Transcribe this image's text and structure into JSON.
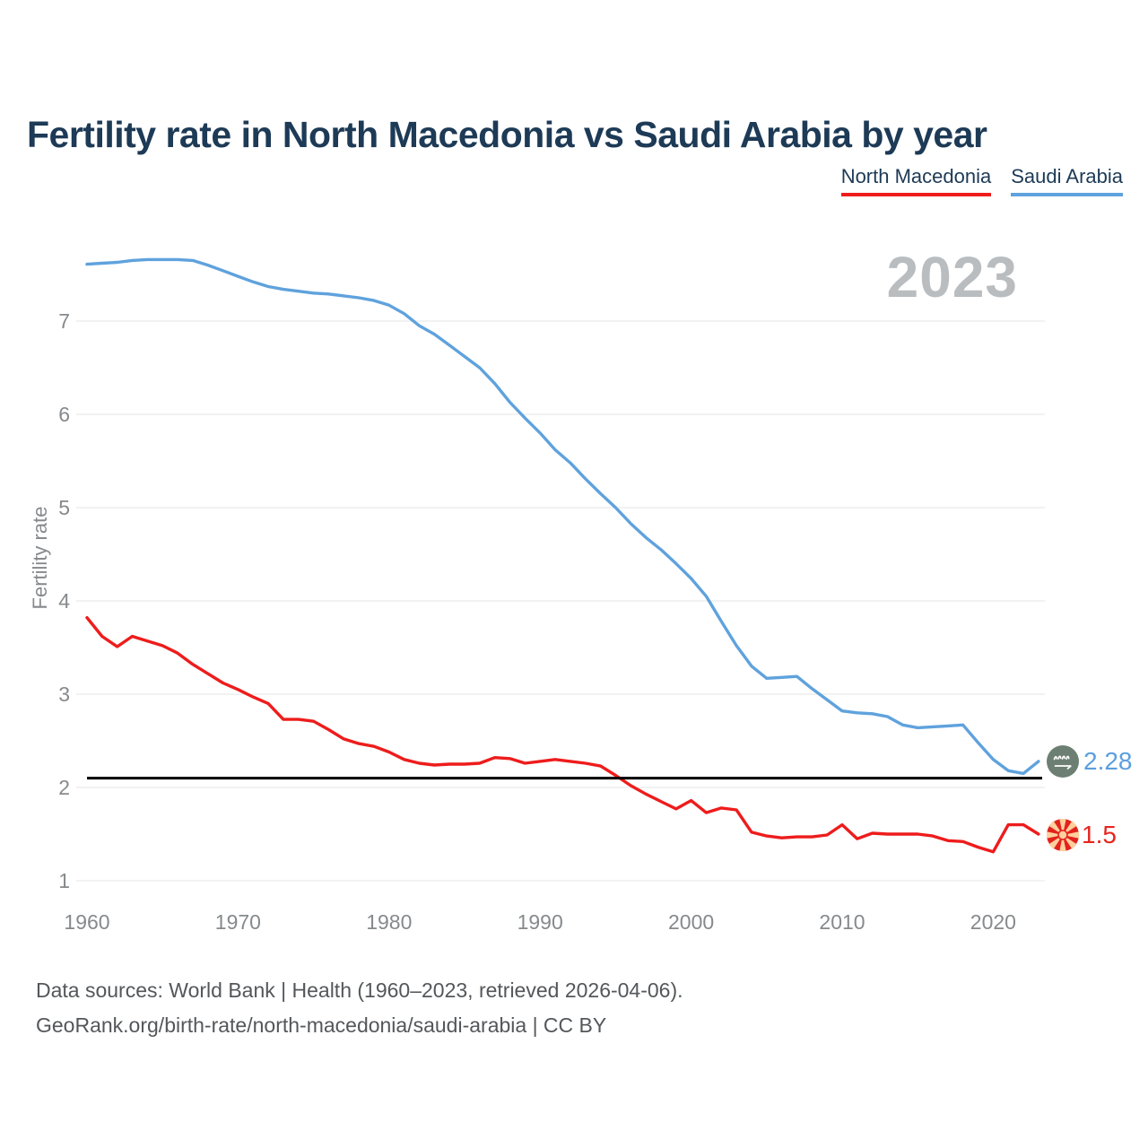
{
  "page": {
    "title": "Fertility rate in North Macedonia vs Saudi Arabia by year",
    "watermark_year": "2023"
  },
  "legend": [
    {
      "label": "North Macedonia",
      "color": "#ee1c1c"
    },
    {
      "label": "Saudi Arabia",
      "color": "#5fa2dd"
    }
  ],
  "axes": {
    "ylabel": "Fertility rate"
  },
  "footer": {
    "line1": "Data sources: World Bank | Health (1960–2023, retrieved 2026-04-06).",
    "line2": "GeoRank.org/birth-rate/north-macedonia/saudi-arabia | CC BY"
  },
  "chart_data": {
    "type": "line",
    "title": "Fertility rate in North Macedonia vs Saudi Arabia by year",
    "xlabel": "",
    "ylabel": "Fertility rate",
    "xlim": [
      1960,
      2023
    ],
    "ylim": [
      1,
      7.9
    ],
    "xticks": [
      1960,
      1970,
      1980,
      1990,
      2000,
      2010,
      2020
    ],
    "yticks": [
      1,
      2,
      3,
      4,
      5,
      6,
      7
    ],
    "grid": "horizontal",
    "legend_position": "top-right",
    "annotation_year": "2023",
    "reference_line": {
      "value": 2.1,
      "color": "#000000"
    },
    "x": [
      1960,
      1961,
      1962,
      1963,
      1964,
      1965,
      1966,
      1967,
      1968,
      1969,
      1970,
      1971,
      1972,
      1973,
      1974,
      1975,
      1976,
      1977,
      1978,
      1979,
      1980,
      1981,
      1982,
      1983,
      1984,
      1985,
      1986,
      1987,
      1988,
      1989,
      1990,
      1991,
      1992,
      1993,
      1994,
      1995,
      1996,
      1997,
      1998,
      1999,
      2000,
      2001,
      2002,
      2003,
      2004,
      2005,
      2006,
      2007,
      2008,
      2009,
      2010,
      2011,
      2012,
      2013,
      2014,
      2015,
      2016,
      2017,
      2018,
      2019,
      2020,
      2021,
      2022,
      2023
    ],
    "series": [
      {
        "name": "North Macedonia",
        "color": "#ee1c1c",
        "end_label": "1.5",
        "end_value": 1.5,
        "values": [
          3.82,
          3.62,
          3.51,
          3.62,
          3.57,
          3.52,
          3.44,
          3.32,
          3.22,
          3.12,
          3.05,
          2.97,
          2.9,
          2.73,
          2.73,
          2.71,
          2.62,
          2.52,
          2.47,
          2.44,
          2.38,
          2.3,
          2.26,
          2.24,
          2.25,
          2.25,
          2.26,
          2.32,
          2.31,
          2.26,
          2.28,
          2.3,
          2.28,
          2.26,
          2.23,
          2.13,
          2.02,
          1.93,
          1.85,
          1.77,
          1.86,
          1.73,
          1.78,
          1.76,
          1.52,
          1.48,
          1.46,
          1.47,
          1.47,
          1.49,
          1.6,
          1.45,
          1.51,
          1.5,
          1.5,
          1.5,
          1.48,
          1.43,
          1.42,
          1.36,
          1.31,
          1.6,
          1.6,
          1.5
        ]
      },
      {
        "name": "Saudi Arabia",
        "color": "#5fa2dd",
        "end_label": "2.28",
        "end_value": 2.28,
        "values": [
          7.61,
          7.62,
          7.63,
          7.65,
          7.66,
          7.66,
          7.66,
          7.65,
          7.6,
          7.54,
          7.48,
          7.42,
          7.37,
          7.34,
          7.32,
          7.3,
          7.29,
          7.27,
          7.25,
          7.22,
          7.17,
          7.08,
          6.95,
          6.86,
          6.74,
          6.62,
          6.5,
          6.33,
          6.13,
          5.96,
          5.8,
          5.62,
          5.48,
          5.31,
          5.15,
          5.0,
          4.83,
          4.68,
          4.55,
          4.4,
          4.24,
          4.05,
          3.78,
          3.52,
          3.3,
          3.17,
          3.18,
          3.19,
          3.06,
          2.94,
          2.82,
          2.8,
          2.79,
          2.76,
          2.67,
          2.64,
          2.65,
          2.66,
          2.67,
          2.48,
          2.3,
          2.18,
          2.15,
          2.28
        ]
      }
    ]
  }
}
